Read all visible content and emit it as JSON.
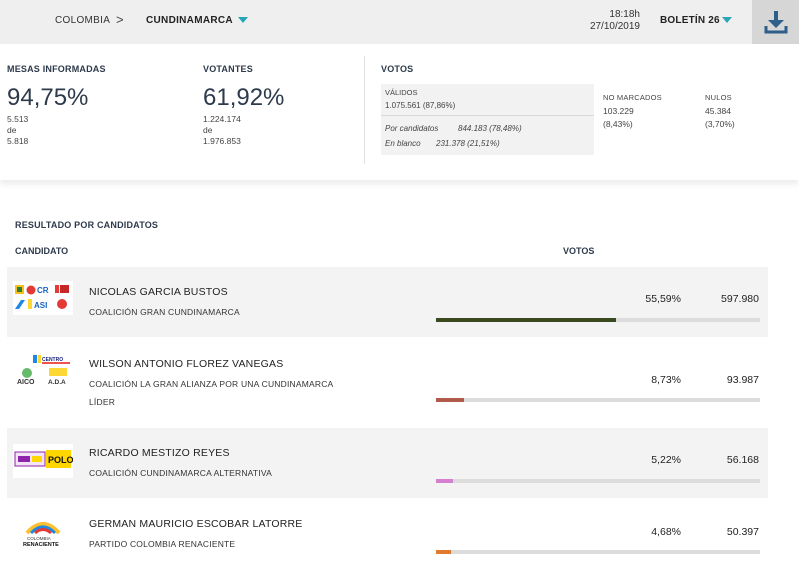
{
  "header": {
    "breadcrumb_home": "COLOMBIA",
    "breadcrumb_separator": ">",
    "breadcrumb_current": "CUNDINAMARCA",
    "time": "18:18h",
    "date": "27/10/2019",
    "bulletin": "BOLETÍN 26",
    "download_icon": "download-icon",
    "accent_color": "#27a6b8"
  },
  "stats": {
    "mesas": {
      "label": "MESAS INFORMADAS",
      "percent": "94,75%",
      "count": "5.513",
      "de": "de",
      "total": "5.818"
    },
    "votantes": {
      "label": "VOTANTES",
      "percent": "61,92%",
      "count": "1.224.174",
      "de": "de",
      "total": "1.976.853"
    },
    "votos": {
      "label": "VOTOS",
      "validos_label": "VÁLIDOS",
      "validos_value": "1.075.561 (87,86%)",
      "por_candidatos_label": "Por candidatos",
      "por_candidatos_value": "844.183 (78,48%)",
      "en_blanco_label": "En blanco",
      "en_blanco_value": "231.378 (21,51%)",
      "no_marcados_label": "NO MARCADOS",
      "no_marcados_value": "103.229",
      "no_marcados_pct": "(8,43%)",
      "nulos_label": "NULOS",
      "nulos_value": "45.384",
      "nulos_pct": "(3,70%)"
    }
  },
  "results": {
    "title": "RESULTADO POR CANDIDATOS",
    "col_candidate": "CANDIDATO",
    "col_votes": "VOTOS",
    "candidates": [
      {
        "name": "NICOLAS GARCIA BUSTOS",
        "party": "COALICIÓN GRAN CUNDINAMARCA",
        "party2": "",
        "percent": "55,59%",
        "votes": "597.980",
        "share": 0.5559,
        "bar_color": "#3b4a1e",
        "logo_texts": [
          "CR",
          "ASI"
        ]
      },
      {
        "name": "WILSON ANTONIO FLOREZ VANEGAS",
        "party": "COALICIÓN LA GRAN ALIANZA POR UNA CUNDINAMARCA",
        "party2": "LÍDER",
        "percent": "8,73%",
        "votes": "93.987",
        "share": 0.0873,
        "bar_color": "#b25a4a",
        "logo_texts": [
          "CENTRO",
          "AICO",
          "A.D.A"
        ]
      },
      {
        "name": "RICARDO MESTIZO REYES",
        "party": "COALICIÓN CUNDINAMARCA ALTERNATIVA",
        "party2": "",
        "percent": "5,22%",
        "votes": "56.168",
        "share": 0.0522,
        "bar_color": "#d47fd0",
        "logo_texts": [
          "POLO"
        ]
      },
      {
        "name": "GERMAN MAURICIO ESCOBAR LATORRE",
        "party": "PARTIDO COLOMBIA RENACIENTE",
        "party2": "",
        "percent": "4,68%",
        "votes": "50.397",
        "share": 0.0468,
        "bar_color": "#e07a30",
        "logo_texts": [
          "COLOMBIA",
          "RENACIENTE"
        ]
      }
    ]
  }
}
